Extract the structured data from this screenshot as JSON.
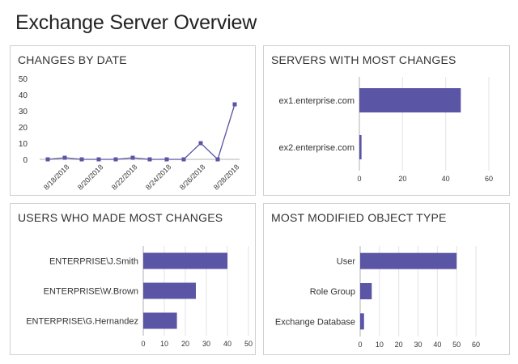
{
  "page_title": "Exchange Server Overview",
  "colors": {
    "series": "#5a55a5",
    "grid": "#e3e3e3",
    "axis": "#b0b0b0"
  },
  "panels": {
    "changes_by_date": {
      "title": "CHANGES BY DATE"
    },
    "servers": {
      "title": "SERVERS WITH MOST CHANGES"
    },
    "users": {
      "title": "USERS WHO MADE MOST CHANGES"
    },
    "object_type": {
      "title": "MOST MODIFIED OBJECT TYPE"
    }
  },
  "chart_data": [
    {
      "id": "changes_by_date",
      "type": "line",
      "title": "CHANGES BY DATE",
      "x": [
        "8/17/2018",
        "8/18/2018",
        "8/19/2018",
        "8/20/2018",
        "8/21/2018",
        "8/22/2018",
        "8/23/2018",
        "8/24/2018",
        "8/25/2018",
        "8/26/2018",
        "8/27/2018",
        "8/28/2018"
      ],
      "x_tick_labels": [
        "8/18/2018",
        "8/20/2018",
        "8/22/2018",
        "8/24/2018",
        "8/26/2018",
        "8/28/2018"
      ],
      "values": [
        0,
        1,
        0,
        0,
        0,
        1,
        0,
        0,
        0,
        10,
        0,
        34
      ],
      "ylim": [
        0,
        50
      ],
      "y_ticks": [
        0,
        10,
        20,
        30,
        40,
        50
      ],
      "grid": false
    },
    {
      "id": "servers",
      "type": "bar",
      "orientation": "horizontal",
      "title": "SERVERS WITH MOST CHANGES",
      "categories": [
        "ex1.enterprise.com",
        "ex2.enterprise.com"
      ],
      "values": [
        47,
        1
      ],
      "xlim": [
        0,
        60
      ],
      "x_ticks": [
        0,
        20,
        40,
        60
      ],
      "grid": true
    },
    {
      "id": "users",
      "type": "bar",
      "orientation": "horizontal",
      "title": "USERS WHO MADE MOST CHANGES",
      "categories": [
        "ENTERPRISE\\J.Smith",
        "ENTERPRISE\\W.Brown",
        "ENTERPRISE\\G.Hernandez"
      ],
      "values": [
        40,
        25,
        16
      ],
      "xlim": [
        0,
        50
      ],
      "x_ticks": [
        0,
        10,
        20,
        30,
        40,
        50
      ],
      "grid": true
    },
    {
      "id": "object_type",
      "type": "bar",
      "orientation": "horizontal",
      "title": "MOST MODIFIED OBJECT TYPE",
      "categories": [
        "User",
        "Role Group",
        "Exchange Database"
      ],
      "values": [
        50,
        6,
        2
      ],
      "xlim": [
        0,
        60
      ],
      "x_ticks": [
        0,
        10,
        20,
        30,
        40,
        50,
        60
      ],
      "grid": true
    }
  ]
}
